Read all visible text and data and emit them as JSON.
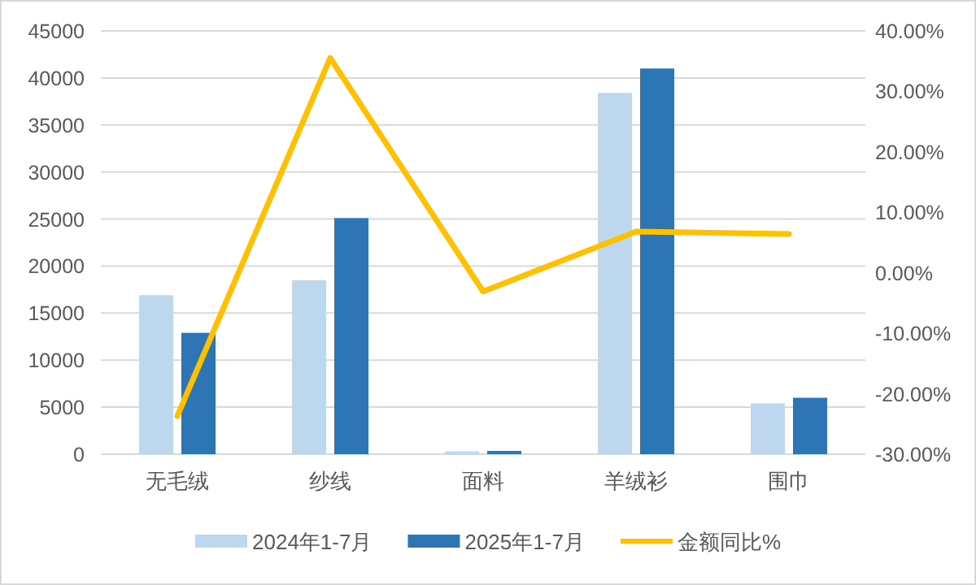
{
  "chart_data": {
    "type": "bar",
    "categories": [
      "无毛绒",
      "纱线",
      "面料",
      "羊绒衫",
      "围巾"
    ],
    "series": [
      {
        "name": "2024年1-7月",
        "color": "#bdd7ee",
        "values": [
          16900,
          18500,
          300,
          38400,
          5400
        ]
      },
      {
        "name": "2025年1-7月",
        "color": "#2e75b6",
        "values": [
          12900,
          25100,
          350,
          41000,
          6000
        ]
      },
      {
        "name": "金额同比%",
        "type": "line",
        "axis": "y2",
        "color": "#ffc000",
        "values": [
          -23.7,
          35.5,
          -3.1,
          6.8,
          6.4
        ]
      }
    ],
    "ylim": [
      0,
      45000
    ],
    "yticks": [
      0,
      5000,
      10000,
      15000,
      20000,
      25000,
      30000,
      35000,
      40000,
      45000
    ],
    "y2lim": [
      -30,
      40
    ],
    "y2ticks": [
      {
        "value": -30,
        "label": "-30.00%"
      },
      {
        "value": -20,
        "label": "-20.00%"
      },
      {
        "value": -10,
        "label": "-10.00%"
      },
      {
        "value": 0,
        "label": "0.00%"
      },
      {
        "value": 10,
        "label": "10.00%"
      },
      {
        "value": 20,
        "label": "20.00%"
      },
      {
        "value": 30,
        "label": "30.00%"
      },
      {
        "value": 40,
        "label": "40.00%"
      }
    ],
    "grid": "y",
    "legend": "bottom",
    "marker": "none"
  }
}
